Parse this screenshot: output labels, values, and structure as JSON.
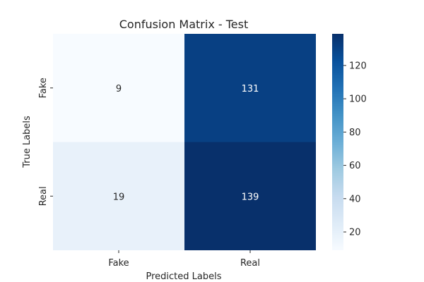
{
  "chart_data": {
    "type": "heatmap",
    "title": "Confusion Matrix - Test",
    "xlabel": "Predicted Labels",
    "ylabel": "True Labels",
    "x_categories": [
      "Fake",
      "Real"
    ],
    "y_categories": [
      "Fake",
      "Real"
    ],
    "values": [
      [
        9,
        131
      ],
      [
        19,
        139
      ]
    ],
    "colorbar": {
      "colormap": "Blues",
      "range": [
        9,
        139
      ],
      "ticks": [
        20,
        40,
        60,
        80,
        100,
        120
      ]
    }
  }
}
